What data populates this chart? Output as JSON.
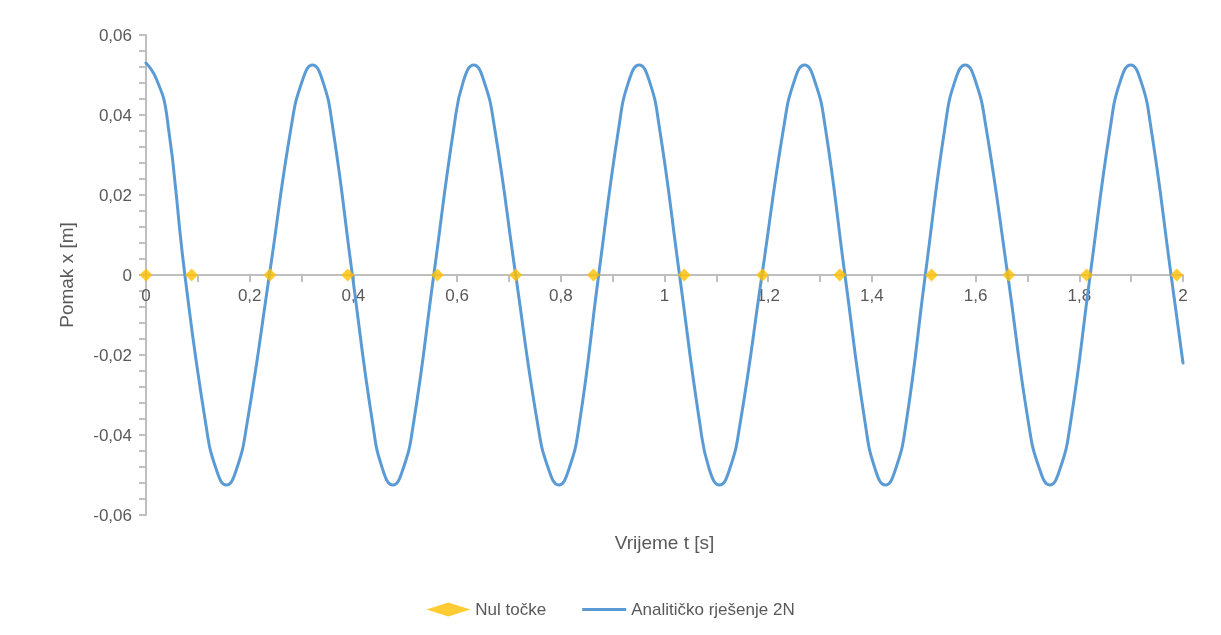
{
  "chart_data": {
    "type": "line",
    "xlabel": "Vrijeme t [s]",
    "ylabel": "Pomak x [m]",
    "xlim": [
      0,
      2
    ],
    "ylim": [
      -0.06,
      0.06
    ],
    "xticks": [
      0,
      {
        "value": 0.2,
        "label": "0,2"
      },
      {
        "value": 0.4,
        "label": "0,4"
      },
      {
        "value": 0.6,
        "label": "0,6"
      },
      {
        "value": 0.8,
        "label": "0,8"
      },
      1,
      {
        "value": 1.2,
        "label": "1,2"
      },
      {
        "value": 1.4,
        "label": "1,4"
      },
      {
        "value": 1.6,
        "label": "1,6"
      },
      {
        "value": 1.8,
        "label": "1,8"
      },
      2
    ],
    "yticks": [
      {
        "value": -0.06,
        "label": "-0,06"
      },
      {
        "value": -0.04,
        "label": "-0,04"
      },
      {
        "value": -0.02,
        "label": "-0,02"
      },
      0,
      {
        "value": 0.02,
        "label": "0,02"
      },
      {
        "value": 0.04,
        "label": "0,04"
      },
      {
        "value": 0.06,
        "label": "0,06"
      }
    ],
    "grid": false,
    "legend": "bottom",
    "series": [
      {
        "name": "Nul točke",
        "type": "scatter",
        "marker": "diamond",
        "color": "#ffc000",
        "x": [
          0,
          0.088,
          0.239,
          0.389,
          0.562,
          0.713,
          0.863,
          1.038,
          1.189,
          1.338,
          1.515,
          1.664,
          1.814,
          1.988
        ],
        "values": [
          0,
          0,
          0,
          0,
          0,
          0,
          0,
          0,
          0,
          0,
          0,
          0,
          0,
          0
        ]
      },
      {
        "name": "Analitičko rješenje 2N",
        "type": "line",
        "marker": "none",
        "line_style": "solid",
        "color": "#5b9bd5",
        "x": [
          0,
          0.02,
          0.04,
          0.075,
          0.115,
          0.135,
          0.155,
          0.175,
          0.195,
          0.238,
          0.28,
          0.301,
          0.321,
          0.341,
          0.36,
          0.398,
          0.437,
          0.456,
          0.476,
          0.496,
          0.516,
          0.555,
          0.594,
          0.612,
          0.632,
          0.652,
          0.672,
          0.713,
          0.755,
          0.776,
          0.796,
          0.816,
          0.836,
          0.873,
          0.912,
          0.931,
          0.951,
          0.971,
          0.99,
          1.029,
          1.068,
          1.086,
          1.106,
          1.126,
          1.146,
          1.188,
          1.23,
          1.25,
          1.27,
          1.29,
          1.31,
          1.348,
          1.387,
          1.406,
          1.426,
          1.446,
          1.466,
          1.503,
          1.541,
          1.56,
          1.58,
          1.6,
          1.62,
          1.662,
          1.702,
          1.723,
          1.743,
          1.763,
          1.783,
          1.821,
          1.86,
          1.879,
          1.899,
          1.919,
          1.938,
          1.977,
          2
        ],
        "values": [
          0.053,
          0.049,
          0.04,
          0,
          -0.037,
          -0.0484,
          -0.0525,
          -0.0484,
          -0.037,
          0,
          0.037,
          0.0484,
          0.0525,
          0.0484,
          0.037,
          0,
          -0.037,
          -0.0484,
          -0.0525,
          -0.0484,
          -0.037,
          0,
          0.037,
          0.0484,
          0.0525,
          0.0484,
          0.037,
          0,
          -0.037,
          -0.0484,
          -0.0525,
          -0.0484,
          -0.037,
          0,
          0.037,
          0.0484,
          0.0525,
          0.0484,
          0.037,
          0,
          -0.037,
          -0.0484,
          -0.0525,
          -0.0484,
          -0.037,
          0,
          0.037,
          0.0484,
          0.0525,
          0.0484,
          0.037,
          0,
          -0.037,
          -0.0484,
          -0.0525,
          -0.0484,
          -0.037,
          0,
          0.037,
          0.0484,
          0.0525,
          0.0484,
          0.037,
          0,
          -0.037,
          -0.0484,
          -0.0525,
          -0.0484,
          -0.037,
          0,
          0.037,
          0.0484,
          0.0525,
          0.0484,
          0.037,
          0,
          -0.022
        ]
      }
    ]
  }
}
